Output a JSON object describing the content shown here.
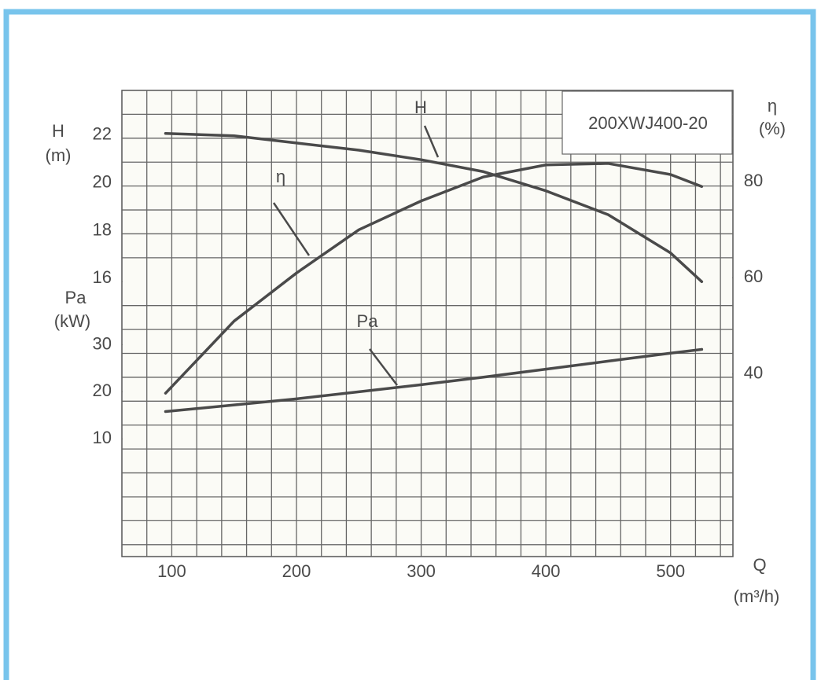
{
  "chart_data": {
    "type": "line",
    "title": "200XWJ400-20",
    "x": [
      95,
      150,
      200,
      250,
      300,
      350,
      400,
      450,
      500,
      525
    ],
    "xlim": [
      60,
      550
    ],
    "xticks": [
      100,
      200,
      300,
      400,
      500
    ],
    "xlabel": [
      "Q",
      "(m³/h)"
    ],
    "ylim": [
      4.5,
      24
    ],
    "yticks": [
      16,
      18,
      20,
      22
    ],
    "ylabel": [
      "H",
      "(m)"
    ],
    "y2lim": [
      2,
      99
    ],
    "y2ticks": [
      40,
      60,
      80
    ],
    "y2label": [
      "η",
      "(%)"
    ],
    "y3lim": [
      -15,
      84
    ],
    "y3ticks": [
      10,
      20,
      30
    ],
    "y3label": [
      "Pa",
      "(kW)"
    ],
    "grid": true,
    "series": [
      {
        "name": "H",
        "color": "#4a4a4a",
        "axis": "y",
        "values": [
          22.2,
          22.1,
          21.8,
          21.5,
          21.1,
          20.6,
          19.8,
          18.8,
          17.2,
          16.0
        ]
      },
      {
        "name": "η",
        "color": "#4a4a4a",
        "axis": "y2",
        "values": [
          36,
          51,
          61,
          70,
          76,
          81,
          83.5,
          83.8,
          81.5,
          79
        ]
      },
      {
        "name": "Pa",
        "color": "#4a4a4a",
        "axis": "y3",
        "values": [
          15.8,
          17.2,
          18.5,
          20,
          21.5,
          23.1,
          24.8,
          26.5,
          28.2,
          29
        ]
      }
    ]
  }
}
